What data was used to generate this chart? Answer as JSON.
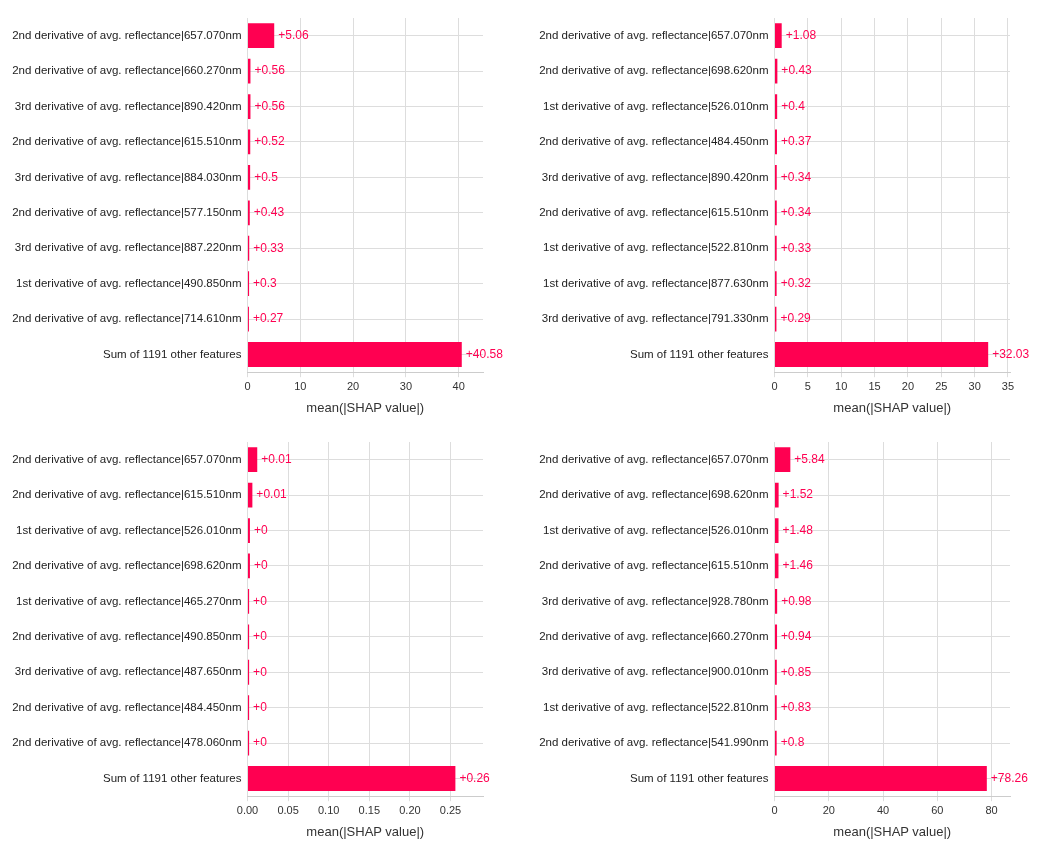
{
  "chart_data": [
    {
      "type": "bar",
      "orientation": "horizontal",
      "categories": [
        "2nd derivative of avg. reflectance|657.070nm",
        "2nd derivative of avg. reflectance|660.270nm",
        "3rd derivative of avg. reflectance|890.420nm",
        "2nd derivative of avg. reflectance|615.510nm",
        "3rd derivative of avg. reflectance|884.030nm",
        "2nd derivative of avg. reflectance|577.150nm",
        "3rd derivative of avg. reflectance|887.220nm",
        "1st derivative of avg. reflectance|490.850nm",
        "2nd derivative of avg. reflectance|714.610nm",
        "Sum of 1191 other features"
      ],
      "values": [
        5.06,
        0.56,
        0.56,
        0.52,
        0.5,
        0.43,
        0.33,
        0.3,
        0.27,
        40.58
      ],
      "value_labels": [
        "+5.06",
        "+0.56",
        "+0.56",
        "+0.52",
        "+0.5",
        "+0.43",
        "+0.33",
        "+0.3",
        "+0.27",
        "+40.58"
      ],
      "color": "#ff0051",
      "xlabel": "mean(|SHAP value|)",
      "xlim": [
        0,
        44.6
      ],
      "xticks": [
        0,
        10,
        20,
        30,
        40
      ],
      "grid": true,
      "legend": false
    },
    {
      "type": "bar",
      "orientation": "horizontal",
      "categories": [
        "2nd derivative of avg. reflectance|657.070nm",
        "2nd derivative of avg. reflectance|698.620nm",
        "1st derivative of avg. reflectance|526.010nm",
        "2nd derivative of avg. reflectance|484.450nm",
        "3rd derivative of avg. reflectance|890.420nm",
        "2nd derivative of avg. reflectance|615.510nm",
        "1st derivative of avg. reflectance|522.810nm",
        "1st derivative of avg. reflectance|877.630nm",
        "3rd derivative of avg. reflectance|791.330nm",
        "Sum of 1191 other features"
      ],
      "values": [
        1.08,
        0.43,
        0.4,
        0.37,
        0.34,
        0.34,
        0.33,
        0.32,
        0.29,
        32.03
      ],
      "value_labels": [
        "+1.08",
        "+0.43",
        "+0.4",
        "+0.37",
        "+0.34",
        "+0.34",
        "+0.33",
        "+0.32",
        "+0.29",
        "+32.03"
      ],
      "color": "#ff0051",
      "xlabel": "mean(|SHAP value|)",
      "xlim": [
        0,
        35.3
      ],
      "xticks": [
        0,
        5,
        10,
        15,
        20,
        25,
        30,
        35
      ],
      "grid": true,
      "legend": false
    },
    {
      "type": "bar",
      "orientation": "horizontal",
      "categories": [
        "2nd derivative of avg. reflectance|657.070nm",
        "2nd derivative of avg. reflectance|615.510nm",
        "1st derivative of avg. reflectance|526.010nm",
        "2nd derivative of avg. reflectance|698.620nm",
        "1st derivative of avg. reflectance|465.270nm",
        "2nd derivative of avg. reflectance|490.850nm",
        "3rd derivative of avg. reflectance|487.650nm",
        "2nd derivative of avg. reflectance|484.450nm",
        "2nd derivative of avg. reflectance|478.060nm",
        "Sum of 1191 other features"
      ],
      "values": [
        0.012,
        0.006,
        0.003,
        0.003,
        0.002,
        0.002,
        0.002,
        0.002,
        0.002,
        0.256
      ],
      "value_labels": [
        "+0.01",
        "+0.01",
        "+0",
        "+0",
        "+0",
        "+0",
        "+0",
        "+0",
        "+0",
        "+0.26"
      ],
      "color": "#ff0051",
      "xlabel": "mean(|SHAP value|)",
      "xlim": [
        0,
        0.29
      ],
      "xticks": [
        {
          "value": 0,
          "label": "0.00"
        },
        {
          "value": 0.05,
          "label": "0.05"
        },
        {
          "value": 0.1,
          "label": "0.10"
        },
        {
          "value": 0.15,
          "label": "0.15"
        },
        {
          "value": 0.2,
          "label": "0.20"
        },
        {
          "value": 0.25,
          "label": "0.25"
        }
      ],
      "grid": true,
      "legend": false
    },
    {
      "type": "bar",
      "orientation": "horizontal",
      "categories": [
        "2nd derivative of avg. reflectance|657.070nm",
        "2nd derivative of avg. reflectance|698.620nm",
        "1st derivative of avg. reflectance|526.010nm",
        "2nd derivative of avg. reflectance|615.510nm",
        "3rd derivative of avg. reflectance|928.780nm",
        "2nd derivative of avg. reflectance|660.270nm",
        "3rd derivative of avg. reflectance|900.010nm",
        "1st derivative of avg. reflectance|522.810nm",
        "2nd derivative of avg. reflectance|541.990nm",
        "Sum of 1191 other features"
      ],
      "values": [
        5.84,
        1.52,
        1.48,
        1.46,
        0.98,
        0.94,
        0.85,
        0.83,
        0.8,
        78.26
      ],
      "value_labels": [
        "+5.84",
        "+1.52",
        "+1.48",
        "+1.46",
        "+0.98",
        "+0.94",
        "+0.85",
        "+0.83",
        "+0.8",
        "+78.26"
      ],
      "color": "#ff0051",
      "xlabel": "mean(|SHAP value|)",
      "xlim": [
        0,
        86.8
      ],
      "xticks": [
        0,
        20,
        40,
        60,
        80
      ],
      "grid": true,
      "legend": false
    }
  ]
}
